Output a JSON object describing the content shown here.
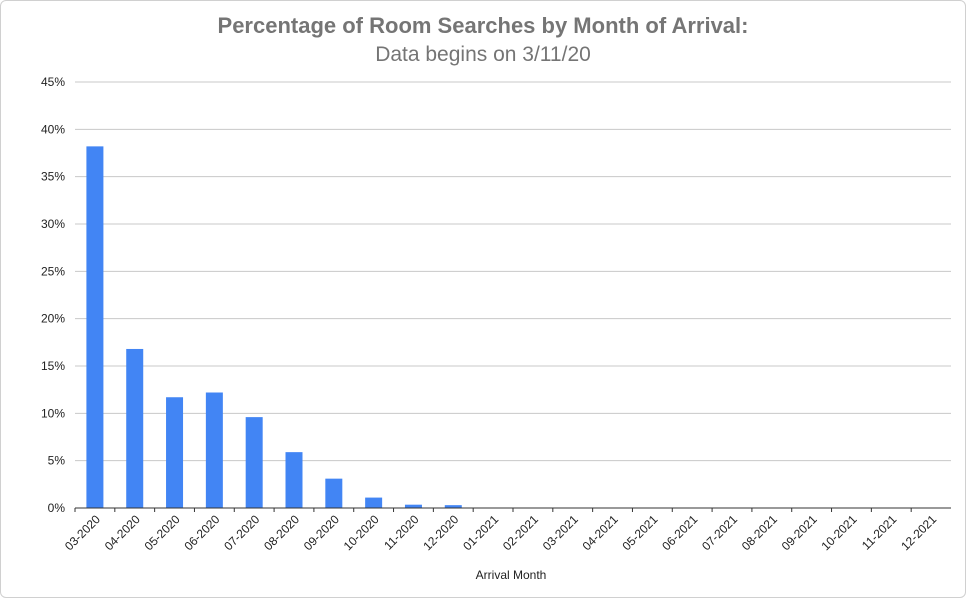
{
  "chart_data": {
    "type": "bar",
    "title": "Percentage of Room Searches by Month of Arrival:",
    "subtitle": "Data begins on 3/11/20",
    "xlabel": "Arrival Month",
    "ylabel": "",
    "categories": [
      "03-2020",
      "04-2020",
      "05-2020",
      "06-2020",
      "07-2020",
      "08-2020",
      "09-2020",
      "10-2020",
      "11-2020",
      "12-2020",
      "01-2021",
      "02-2021",
      "03-2021",
      "04-2021",
      "05-2021",
      "06-2021",
      "07-2021",
      "08-2021",
      "09-2021",
      "10-2021",
      "11-2021",
      "12-2021"
    ],
    "values": [
      38.2,
      16.8,
      11.7,
      12.2,
      9.6,
      5.9,
      3.1,
      1.1,
      0.35,
      0.3,
      0,
      0,
      0,
      0,
      0,
      0,
      0,
      0,
      0,
      0,
      0,
      0
    ],
    "ylim": [
      0,
      45
    ],
    "yticks": [
      "0%",
      "5%",
      "10%",
      "15%",
      "20%",
      "25%",
      "30%",
      "35%",
      "40%",
      "45%"
    ],
    "grid": true,
    "legend": "none",
    "bar_color": "#4285f4"
  }
}
